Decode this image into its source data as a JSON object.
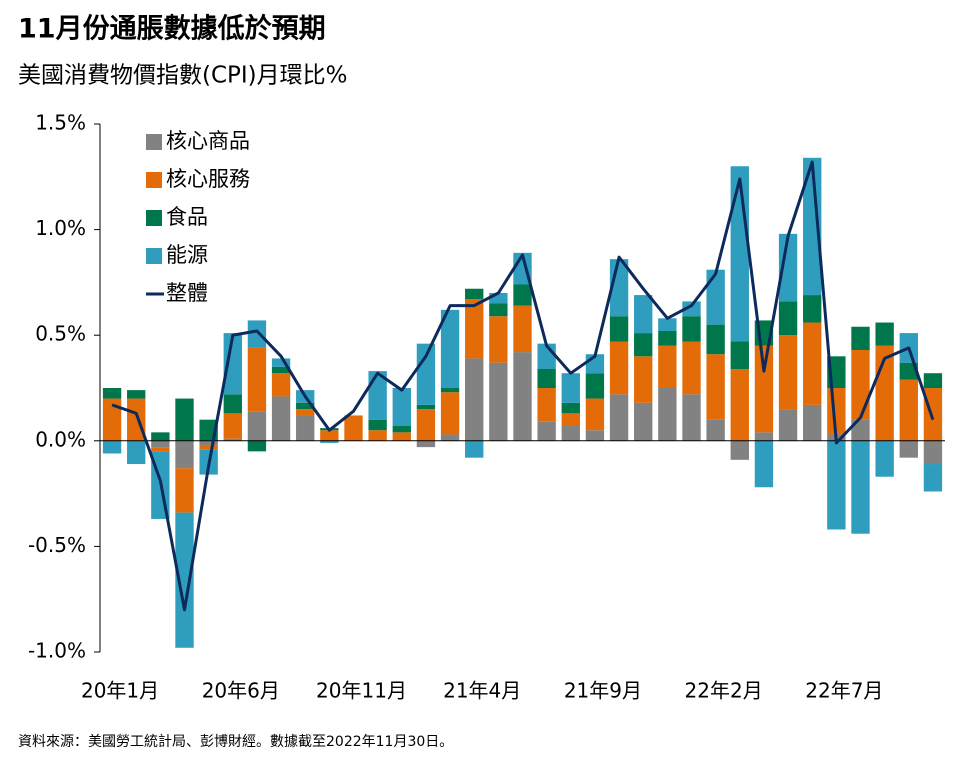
{
  "chart_data": {
    "type": "bar",
    "stacked": true,
    "title": "11月份通脹數據低於預期",
    "subtitle": "美國消費物價指數(CPI)月環比%",
    "source": "資料來源：美國勞工統計局、彭博財經。數據截至2022年11月30日。",
    "categories": [
      "20年1月",
      null,
      null,
      null,
      null,
      "20年6月",
      null,
      null,
      null,
      null,
      "20年11月",
      null,
      null,
      null,
      null,
      "21年4月",
      null,
      null,
      null,
      null,
      "21年9月",
      null,
      null,
      null,
      null,
      "22年2月",
      null,
      null,
      null,
      null,
      "22年7月",
      null,
      null,
      null,
      null
    ],
    "series": [
      {
        "name": "核心商品",
        "color": "#828282",
        "values": [
          0.0,
          0.0,
          -0.03,
          -0.13,
          -0.02,
          0.01,
          0.14,
          0.21,
          0.12,
          0.0,
          0.0,
          0.0,
          0.0,
          -0.03,
          0.03,
          0.39,
          0.37,
          0.42,
          0.09,
          0.07,
          0.05,
          0.22,
          0.18,
          0.25,
          0.22,
          0.1,
          -0.09,
          0.04,
          0.15,
          0.17,
          0.03,
          0.1,
          0.0,
          -0.08,
          -0.11
        ]
      },
      {
        "name": "核心服務",
        "color": "#e36c09",
        "values": [
          0.2,
          0.2,
          -0.02,
          -0.21,
          -0.02,
          0.12,
          0.3,
          0.11,
          0.03,
          0.05,
          0.12,
          0.05,
          0.04,
          0.15,
          0.2,
          0.28,
          0.22,
          0.22,
          0.16,
          0.06,
          0.15,
          0.25,
          0.22,
          0.2,
          0.25,
          0.31,
          0.34,
          0.41,
          0.35,
          0.39,
          0.22,
          0.33,
          0.45,
          0.29,
          0.25
        ]
      },
      {
        "name": "食品",
        "color": "#00774a",
        "values": [
          0.05,
          0.04,
          0.04,
          0.2,
          0.1,
          0.09,
          -0.05,
          0.03,
          0.03,
          0.01,
          0.0,
          0.05,
          0.03,
          0.02,
          0.02,
          0.05,
          0.06,
          0.1,
          0.09,
          0.05,
          0.12,
          0.12,
          0.11,
          0.07,
          0.12,
          0.14,
          0.13,
          0.12,
          0.16,
          0.13,
          0.15,
          0.11,
          0.11,
          0.08,
          0.07
        ]
      },
      {
        "name": "能源",
        "color": "#2f9dbd",
        "values": [
          -0.06,
          -0.11,
          -0.32,
          -0.64,
          -0.12,
          0.29,
          0.13,
          0.04,
          0.06,
          -0.01,
          0.0,
          0.23,
          0.18,
          0.29,
          0.37,
          -0.08,
          0.05,
          0.15,
          0.12,
          0.14,
          0.09,
          0.27,
          0.18,
          0.06,
          0.07,
          0.26,
          0.83,
          -0.22,
          0.32,
          0.65,
          -0.42,
          -0.44,
          -0.17,
          0.14,
          -0.13
        ]
      },
      {
        "name": "整體",
        "color": "#0d2a5c",
        "type": "line",
        "values": [
          0.17,
          0.13,
          -0.19,
          -0.8,
          -0.12,
          0.5,
          0.52,
          0.4,
          0.21,
          0.05,
          0.14,
          0.32,
          0.24,
          0.4,
          0.64,
          0.64,
          0.7,
          0.88,
          0.45,
          0.32,
          0.4,
          0.87,
          0.72,
          0.58,
          0.64,
          0.79,
          1.24,
          0.33,
          0.97,
          1.32,
          -0.01,
          0.11,
          0.39,
          0.44,
          0.1
        ]
      }
    ],
    "ylim": [
      -1.0,
      1.5
    ],
    "yticks": [
      {
        "value": 1.5,
        "label": "1.5%"
      },
      {
        "value": 1.0,
        "label": "1.0%"
      },
      {
        "value": 0.5,
        "label": "0.5%"
      },
      {
        "value": 0.0,
        "label": "0.0%"
      },
      {
        "value": -0.5,
        "label": "-0.5%"
      },
      {
        "value": -1.0,
        "label": "-1.0%"
      }
    ],
    "legend": "top-left"
  }
}
